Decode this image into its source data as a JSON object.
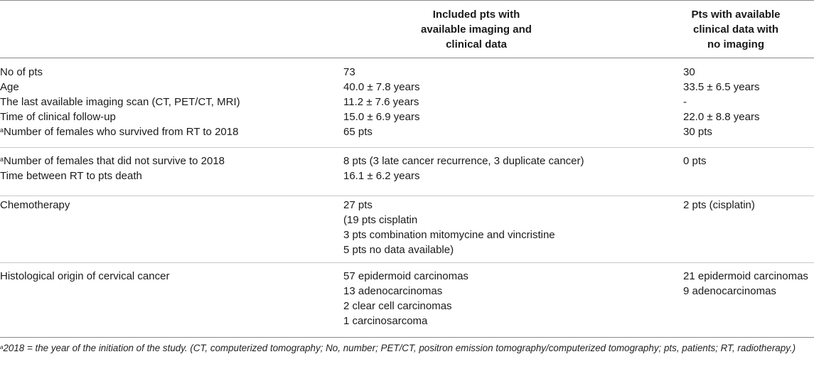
{
  "header": {
    "col1": "",
    "col2": "Included pts with\navailable imaging and\nclinical data",
    "col3": "Pts with available\nclinical data with\nno imaging"
  },
  "sections": [
    {
      "rows": [
        {
          "label_sup": "",
          "label": "No of pts",
          "c2": "73",
          "c3": "30"
        },
        {
          "label_sup": "",
          "label": "Age",
          "c2": "40.0 ± 7.8 years",
          "c3": "33.5 ± 6.5 years"
        },
        {
          "label_sup": "",
          "label": "The last available imaging scan (CT, PET/CT, MRI)",
          "c2": "11.2 ± 7.6 years",
          "c3": "-"
        },
        {
          "label_sup": "",
          "label": "Time of clinical follow-up",
          "c2": "15.0 ± 6.9 years",
          "c3": "22.0 ± 8.8 years"
        },
        {
          "label_sup": "a",
          "label": "Number of females who survived from RT to 2018",
          "c2": "65 pts",
          "c3": "30 pts"
        }
      ]
    },
    {
      "rows": [
        {
          "label_sup": "a",
          "label": "Number of females that did not survive to 2018",
          "c2": "8 pts (3 late cancer recurrence, 3 duplicate cancer)",
          "c3": "0 pts"
        },
        {
          "label_sup": "",
          "label": "Time between RT to pts death",
          "c2": "16.1 ± 6.2 years",
          "c3": ""
        }
      ]
    },
    {
      "rows": [
        {
          "label_sup": "",
          "label": "Chemotherapy",
          "c2": "27 pts",
          "c3": "2 pts (cisplatin)"
        },
        {
          "label_sup": "",
          "label": "",
          "c2": "(19 pts cisplatin",
          "c3": ""
        },
        {
          "label_sup": "",
          "label": "",
          "c2": "3 pts combination mitomycine and vincristine",
          "c3": ""
        },
        {
          "label_sup": "",
          "label": "",
          "c2": "5 pts no data available)",
          "c3": ""
        }
      ]
    },
    {
      "rows": [
        {
          "label_sup": "",
          "label": "Histological origin of cervical cancer",
          "c2": "57 epidermoid carcinomas",
          "c3": "21 epidermoid carcinomas"
        },
        {
          "label_sup": "",
          "label": "",
          "c2": "13 adenocarcinomas",
          "c3": "9 adenocarcinomas"
        },
        {
          "label_sup": "",
          "label": "",
          "c2": "2 clear cell carcinomas",
          "c3": ""
        },
        {
          "label_sup": "",
          "label": "",
          "c2": "1 carcinosarcoma",
          "c3": ""
        }
      ]
    }
  ],
  "footnote": {
    "sup": "a",
    "text": "2018 = the year of the initiation of the study. (CT, computerized tomography; No, number; PET/CT, positron emission tomography/computerized tomography; pts, patients; RT, radiotherapy.)"
  }
}
